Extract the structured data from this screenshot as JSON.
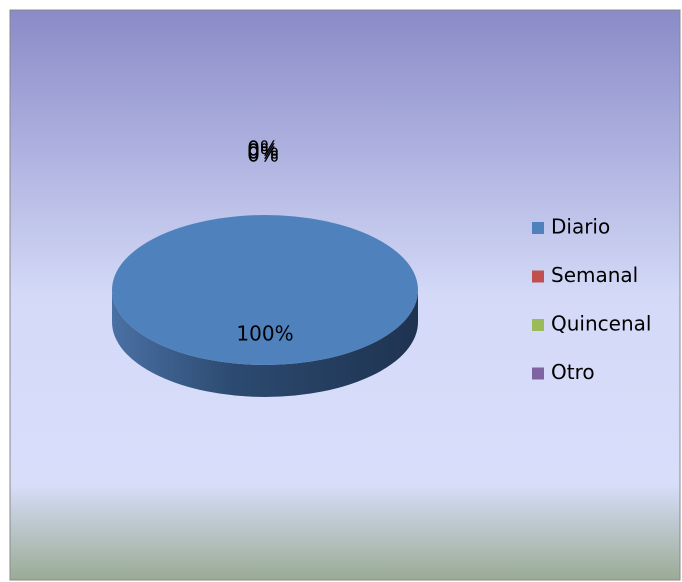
{
  "chart_data": {
    "type": "pie",
    "categories": [
      "Diario",
      "Semanal",
      "Quincenal",
      "Otro"
    ],
    "values": [
      100,
      0,
      0,
      0
    ],
    "value_labels": [
      "100%",
      "0%",
      "0%",
      "0%"
    ],
    "colors": [
      "#4f81bd",
      "#c0504d",
      "#9bbb59",
      "#8064a2"
    ],
    "legend": "right"
  }
}
